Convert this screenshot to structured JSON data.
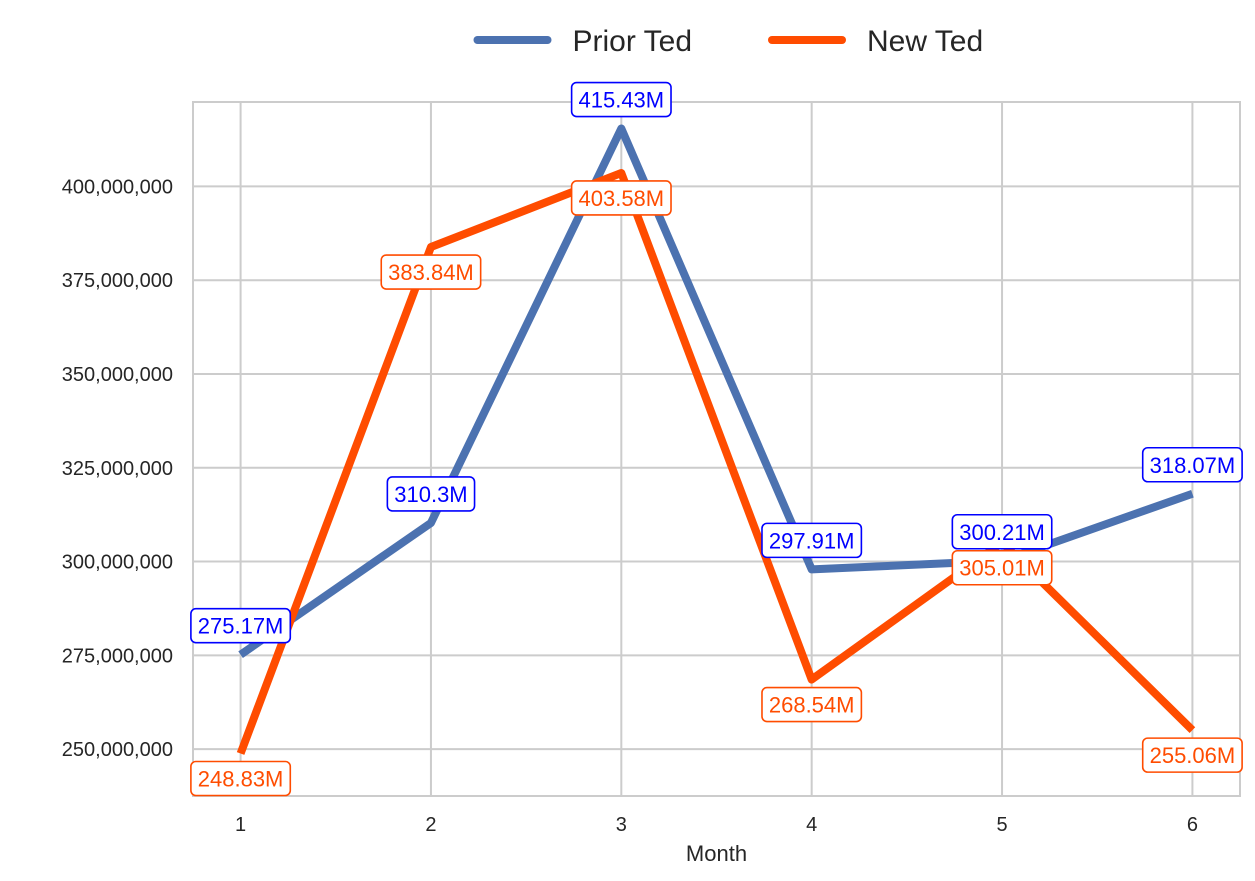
{
  "chart_data": {
    "type": "line",
    "title": "",
    "xlabel": "Month",
    "ylabel": "",
    "x": [
      1,
      2,
      3,
      4,
      5,
      6
    ],
    "x_tick_labels": [
      "1",
      "2",
      "3",
      "4",
      "5",
      "6"
    ],
    "ylim": [
      237500000,
      422500000
    ],
    "y_ticks": [
      250000000,
      275000000,
      300000000,
      325000000,
      350000000,
      375000000,
      400000000
    ],
    "y_tick_labels": [
      "250,000,000",
      "275,000,000",
      "300,000,000",
      "325,000,000",
      "350,000,000",
      "375,000,000",
      "400,000,000"
    ],
    "grid": true,
    "legend_position": "top-center",
    "series": [
      {
        "name": "Prior Ted",
        "color": "#4c72b0",
        "label_color": "#0000ff",
        "label_position": "above",
        "values": [
          275170000,
          310300000,
          415430000,
          297910000,
          300210000,
          318070000
        ],
        "labels": [
          "275.17M",
          "310.3M",
          "415.43M",
          "297.91M",
          "300.21M",
          "318.07M"
        ]
      },
      {
        "name": "New Ted",
        "color": "#ff4c00",
        "label_color": "#ff4c00",
        "label_position": "below",
        "values": [
          248830000,
          383840000,
          403580000,
          268540000,
          305010000,
          255060000
        ],
        "labels": [
          "248.83M",
          "383.84M",
          "403.58M",
          "268.54M",
          "305.01M",
          "255.06M"
        ]
      }
    ]
  }
}
